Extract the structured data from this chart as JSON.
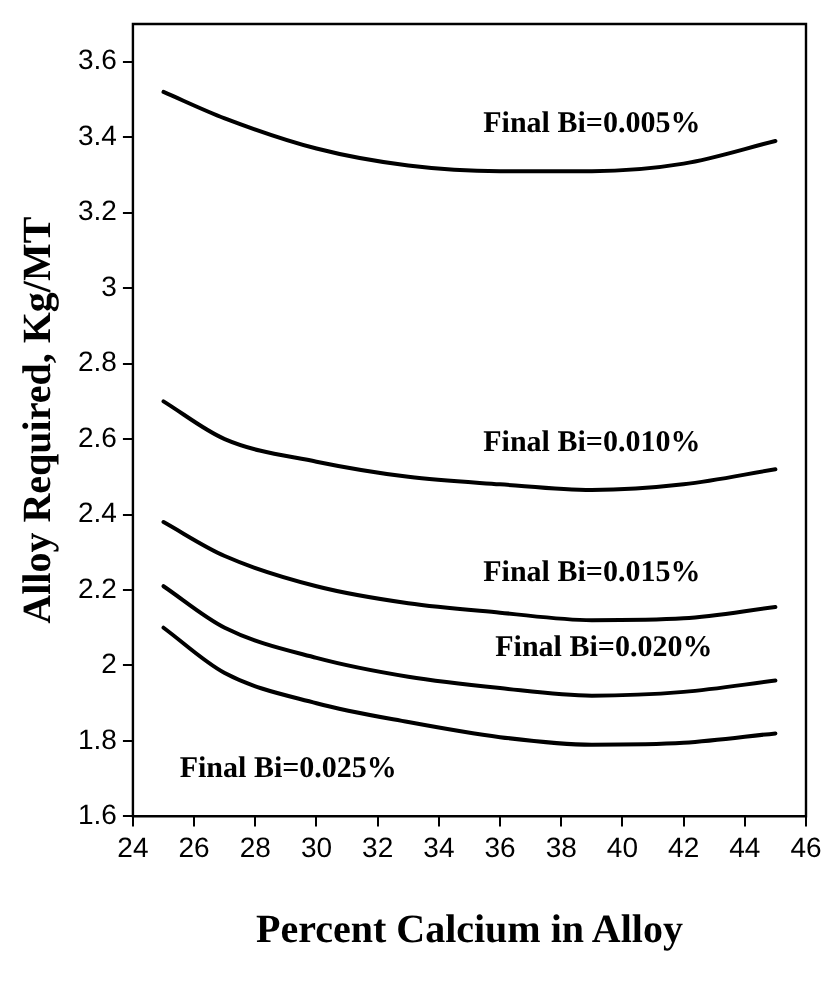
{
  "chart_data": {
    "type": "line",
    "xlabel": "Percent Calcium in Alloy",
    "ylabel": "Alloy Required, Kg/MT",
    "x": [
      25,
      27,
      30,
      33,
      36,
      39,
      42,
      45
    ],
    "series": [
      {
        "name": "Final Bi=0.005%",
        "color": "#000000",
        "values": [
          3.52,
          3.45,
          3.37,
          3.325,
          3.31,
          3.31,
          3.33,
          3.39
        ]
      },
      {
        "name": "Final Bi=0.010%",
        "color": "#000000",
        "values": [
          2.7,
          2.6,
          2.54,
          2.5,
          2.48,
          2.465,
          2.48,
          2.52
        ]
      },
      {
        "name": "Final Bi=0.015%",
        "color": "#000000",
        "values": [
          2.38,
          2.29,
          2.21,
          2.165,
          2.14,
          2.12,
          2.125,
          2.155
        ]
      },
      {
        "name": "Final Bi=0.020%",
        "color": "#000000",
        "values": [
          2.21,
          2.1,
          2.02,
          1.97,
          1.94,
          1.92,
          1.93,
          1.96
        ]
      },
      {
        "name": "Final Bi=0.025%",
        "color": "#000000",
        "values": [
          2.1,
          1.98,
          1.9,
          1.85,
          1.81,
          1.79,
          1.795,
          1.82
        ]
      }
    ],
    "xlim": [
      24,
      46
    ],
    "xticks": [
      24,
      26,
      28,
      30,
      32,
      34,
      36,
      38,
      40,
      42,
      44,
      46
    ],
    "ylim": [
      1.6,
      3.7
    ],
    "yticks": [
      1.6,
      1.8,
      2,
      2.2,
      2.4,
      2.6,
      2.8,
      3,
      3.2,
      3.4,
      3.6
    ],
    "grid": false,
    "legend": false,
    "marker": "none",
    "line_style": "solid"
  }
}
